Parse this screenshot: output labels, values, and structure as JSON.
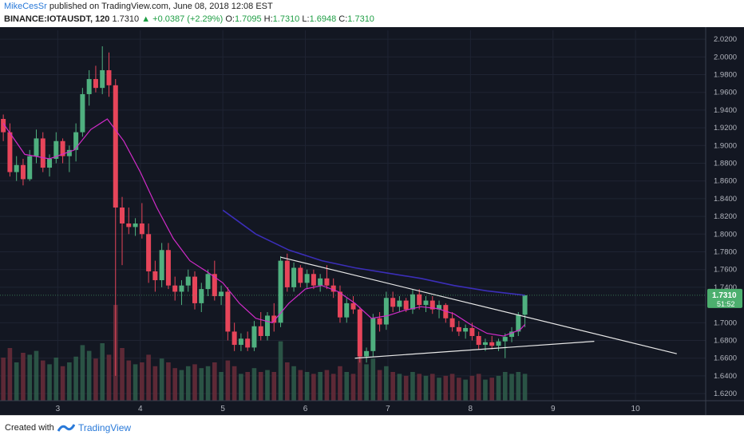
{
  "header": {
    "author": "MikeCesSr",
    "published_text": "published on TradingView.com, June 08, 2018 12:08 EST",
    "symbol": "BINANCE:IOTAUSDT, 120",
    "last": "1.7310",
    "change": "+0.0387 (+2.29%)",
    "o_label": "O:",
    "o_value": "1.7095",
    "h_label": "H:",
    "h_value": "1.7310",
    "l_label": "L:",
    "l_value": "1.6948",
    "c_label": "C:",
    "c_value": "1.7310"
  },
  "footer": {
    "created_with": "Created with",
    "brand": "TradingView"
  },
  "colors": {
    "background": "#131722",
    "up": "#4fb07f",
    "down": "#e7455a",
    "ema_short": "#d12bc9",
    "ema_long": "#3b2eb8",
    "trendline": "#e8e8e8",
    "price_tag": "#4caf6e"
  },
  "chart_data": {
    "type": "candlestick",
    "ylim": [
      1.612,
      2.03
    ],
    "xlim": [
      2.3,
      10.85
    ],
    "y_ticks": [
      "2.0200",
      "2.0000",
      "1.9800",
      "1.9600",
      "1.9400",
      "1.9200",
      "1.9000",
      "1.8800",
      "1.8600",
      "1.8400",
      "1.8200",
      "1.8000",
      "1.7800",
      "1.7600",
      "1.7400",
      "1.7200",
      "1.7000",
      "1.6800",
      "1.6600",
      "1.6400",
      "1.6200"
    ],
    "x_ticks": [
      "3",
      "4",
      "5",
      "6",
      "7",
      "8",
      "9",
      "10"
    ],
    "last_price_label": "1.7310",
    "countdown_label": "51:52",
    "price_line": 1.731,
    "candles": [
      {
        "t": 2.34,
        "o": 1.93,
        "h": 1.935,
        "l": 1.905,
        "c": 1.915
      },
      {
        "t": 2.42,
        "o": 1.915,
        "h": 1.925,
        "l": 1.865,
        "c": 1.87
      },
      {
        "t": 2.5,
        "o": 1.87,
        "h": 1.888,
        "l": 1.86,
        "c": 1.878
      },
      {
        "t": 2.58,
        "o": 1.878,
        "h": 1.885,
        "l": 1.855,
        "c": 1.862
      },
      {
        "t": 2.66,
        "o": 1.862,
        "h": 1.895,
        "l": 1.86,
        "c": 1.888
      },
      {
        "t": 2.74,
        "o": 1.888,
        "h": 1.918,
        "l": 1.88,
        "c": 1.908
      },
      {
        "t": 2.82,
        "o": 1.908,
        "h": 1.915,
        "l": 1.87,
        "c": 1.875
      },
      {
        "t": 2.9,
        "o": 1.875,
        "h": 1.89,
        "l": 1.865,
        "c": 1.885
      },
      {
        "t": 2.98,
        "o": 1.885,
        "h": 1.915,
        "l": 1.88,
        "c": 1.905
      },
      {
        "t": 3.06,
        "o": 1.905,
        "h": 1.908,
        "l": 1.88,
        "c": 1.888
      },
      {
        "t": 3.14,
        "o": 1.888,
        "h": 1.9,
        "l": 1.87,
        "c": 1.895
      },
      {
        "t": 3.22,
        "o": 1.895,
        "h": 1.925,
        "l": 1.882,
        "c": 1.915
      },
      {
        "t": 3.3,
        "o": 1.915,
        "h": 1.965,
        "l": 1.91,
        "c": 1.958
      },
      {
        "t": 3.38,
        "o": 1.958,
        "h": 1.985,
        "l": 1.945,
        "c": 1.975
      },
      {
        "t": 3.46,
        "o": 1.975,
        "h": 1.99,
        "l": 1.96,
        "c": 1.965
      },
      {
        "t": 3.54,
        "o": 1.965,
        "h": 2.012,
        "l": 1.958,
        "c": 1.985
      },
      {
        "t": 3.62,
        "o": 1.985,
        "h": 2.005,
        "l": 1.955,
        "c": 1.968
      },
      {
        "t": 3.7,
        "o": 1.968,
        "h": 1.975,
        "l": 1.64,
        "c": 1.83
      },
      {
        "t": 3.78,
        "o": 1.83,
        "h": 1.842,
        "l": 1.765,
        "c": 1.812
      },
      {
        "t": 3.86,
        "o": 1.812,
        "h": 1.83,
        "l": 1.8,
        "c": 1.808
      },
      {
        "t": 3.94,
        "o": 1.808,
        "h": 1.818,
        "l": 1.798,
        "c": 1.812
      },
      {
        "t": 4.02,
        "o": 1.812,
        "h": 1.835,
        "l": 1.795,
        "c": 1.8
      },
      {
        "t": 4.1,
        "o": 1.8,
        "h": 1.812,
        "l": 1.745,
        "c": 1.758
      },
      {
        "t": 4.18,
        "o": 1.758,
        "h": 1.77,
        "l": 1.735,
        "c": 1.748
      },
      {
        "t": 4.26,
        "o": 1.748,
        "h": 1.79,
        "l": 1.74,
        "c": 1.782
      },
      {
        "t": 4.34,
        "o": 1.782,
        "h": 1.79,
        "l": 1.738,
        "c": 1.742
      },
      {
        "t": 4.42,
        "o": 1.742,
        "h": 1.752,
        "l": 1.725,
        "c": 1.735
      },
      {
        "t": 4.5,
        "o": 1.735,
        "h": 1.748,
        "l": 1.72,
        "c": 1.742
      },
      {
        "t": 4.58,
        "o": 1.742,
        "h": 1.76,
        "l": 1.735,
        "c": 1.752
      },
      {
        "t": 4.66,
        "o": 1.752,
        "h": 1.758,
        "l": 1.715,
        "c": 1.722
      },
      {
        "t": 4.74,
        "o": 1.722,
        "h": 1.745,
        "l": 1.712,
        "c": 1.738
      },
      {
        "t": 4.82,
        "o": 1.738,
        "h": 1.76,
        "l": 1.73,
        "c": 1.755
      },
      {
        "t": 4.9,
        "o": 1.755,
        "h": 1.77,
        "l": 1.725,
        "c": 1.73
      },
      {
        "t": 4.98,
        "o": 1.73,
        "h": 1.742,
        "l": 1.72,
        "c": 1.735
      },
      {
        "t": 5.06,
        "o": 1.735,
        "h": 1.74,
        "l": 1.68,
        "c": 1.69
      },
      {
        "t": 5.14,
        "o": 1.69,
        "h": 1.7,
        "l": 1.668,
        "c": 1.675
      },
      {
        "t": 5.22,
        "o": 1.675,
        "h": 1.688,
        "l": 1.668,
        "c": 1.682
      },
      {
        "t": 5.3,
        "o": 1.682,
        "h": 1.69,
        "l": 1.668,
        "c": 1.672
      },
      {
        "t": 5.38,
        "o": 1.672,
        "h": 1.702,
        "l": 1.668,
        "c": 1.696
      },
      {
        "t": 5.46,
        "o": 1.696,
        "h": 1.712,
        "l": 1.68,
        "c": 1.685
      },
      {
        "t": 5.54,
        "o": 1.685,
        "h": 1.712,
        "l": 1.68,
        "c": 1.708
      },
      {
        "t": 5.62,
        "o": 1.708,
        "h": 1.722,
        "l": 1.69,
        "c": 1.7
      },
      {
        "t": 5.7,
        "o": 1.7,
        "h": 1.775,
        "l": 1.695,
        "c": 1.77
      },
      {
        "t": 5.78,
        "o": 1.77,
        "h": 1.778,
        "l": 1.735,
        "c": 1.74
      },
      {
        "t": 5.86,
        "o": 1.74,
        "h": 1.768,
        "l": 1.735,
        "c": 1.762
      },
      {
        "t": 5.94,
        "o": 1.762,
        "h": 1.765,
        "l": 1.74,
        "c": 1.745
      },
      {
        "t": 6.02,
        "o": 1.745,
        "h": 1.76,
        "l": 1.738,
        "c": 1.755
      },
      {
        "t": 6.1,
        "o": 1.755,
        "h": 1.76,
        "l": 1.738,
        "c": 1.742
      },
      {
        "t": 6.18,
        "o": 1.742,
        "h": 1.755,
        "l": 1.735,
        "c": 1.75
      },
      {
        "t": 6.26,
        "o": 1.75,
        "h": 1.765,
        "l": 1.738,
        "c": 1.742
      },
      {
        "t": 6.34,
        "o": 1.742,
        "h": 1.75,
        "l": 1.728,
        "c": 1.735
      },
      {
        "t": 6.42,
        "o": 1.735,
        "h": 1.742,
        "l": 1.7,
        "c": 1.706
      },
      {
        "t": 6.5,
        "o": 1.706,
        "h": 1.728,
        "l": 1.7,
        "c": 1.722
      },
      {
        "t": 6.58,
        "o": 1.722,
        "h": 1.73,
        "l": 1.71,
        "c": 1.715
      },
      {
        "t": 6.66,
        "o": 1.715,
        "h": 1.718,
        "l": 1.655,
        "c": 1.662
      },
      {
        "t": 6.74,
        "o": 1.662,
        "h": 1.672,
        "l": 1.655,
        "c": 1.668
      },
      {
        "t": 6.82,
        "o": 1.668,
        "h": 1.71,
        "l": 1.662,
        "c": 1.705
      },
      {
        "t": 6.9,
        "o": 1.705,
        "h": 1.712,
        "l": 1.69,
        "c": 1.698
      },
      {
        "t": 6.98,
        "o": 1.698,
        "h": 1.735,
        "l": 1.692,
        "c": 1.728
      },
      {
        "t": 7.06,
        "o": 1.728,
        "h": 1.735,
        "l": 1.712,
        "c": 1.718
      },
      {
        "t": 7.14,
        "o": 1.718,
        "h": 1.73,
        "l": 1.712,
        "c": 1.725
      },
      {
        "t": 7.22,
        "o": 1.725,
        "h": 1.728,
        "l": 1.712,
        "c": 1.715
      },
      {
        "t": 7.3,
        "o": 1.715,
        "h": 1.738,
        "l": 1.71,
        "c": 1.732
      },
      {
        "t": 7.38,
        "o": 1.732,
        "h": 1.738,
        "l": 1.715,
        "c": 1.72
      },
      {
        "t": 7.46,
        "o": 1.72,
        "h": 1.73,
        "l": 1.712,
        "c": 1.725
      },
      {
        "t": 7.54,
        "o": 1.725,
        "h": 1.73,
        "l": 1.71,
        "c": 1.715
      },
      {
        "t": 7.62,
        "o": 1.715,
        "h": 1.725,
        "l": 1.705,
        "c": 1.72
      },
      {
        "t": 7.7,
        "o": 1.72,
        "h": 1.722,
        "l": 1.7,
        "c": 1.705
      },
      {
        "t": 7.78,
        "o": 1.705,
        "h": 1.712,
        "l": 1.69,
        "c": 1.695
      },
      {
        "t": 7.86,
        "o": 1.695,
        "h": 1.702,
        "l": 1.685,
        "c": 1.69
      },
      {
        "t": 7.94,
        "o": 1.69,
        "h": 1.698,
        "l": 1.682,
        "c": 1.694
      },
      {
        "t": 8.02,
        "o": 1.694,
        "h": 1.7,
        "l": 1.68,
        "c": 1.685
      },
      {
        "t": 8.1,
        "o": 1.685,
        "h": 1.69,
        "l": 1.67,
        "c": 1.675
      },
      {
        "t": 8.18,
        "o": 1.675,
        "h": 1.682,
        "l": 1.668,
        "c": 1.678
      },
      {
        "t": 8.26,
        "o": 1.678,
        "h": 1.685,
        "l": 1.67,
        "c": 1.674
      },
      {
        "t": 8.34,
        "o": 1.674,
        "h": 1.682,
        "l": 1.668,
        "c": 1.679
      },
      {
        "t": 8.42,
        "o": 1.679,
        "h": 1.688,
        "l": 1.66,
        "c": 1.684
      },
      {
        "t": 8.5,
        "o": 1.684,
        "h": 1.695,
        "l": 1.678,
        "c": 1.69
      },
      {
        "t": 8.58,
        "o": 1.69,
        "h": 1.712,
        "l": 1.685,
        "c": 1.709
      },
      {
        "t": 8.66,
        "o": 1.709,
        "h": 1.731,
        "l": 1.695,
        "c": 1.731
      }
    ],
    "ema_short": [
      [
        2.34,
        1.925
      ],
      [
        2.6,
        1.89
      ],
      [
        2.9,
        1.885
      ],
      [
        3.2,
        1.895
      ],
      [
        3.4,
        1.918
      ],
      [
        3.6,
        1.93
      ],
      [
        3.8,
        1.905
      ],
      [
        4.0,
        1.87
      ],
      [
        4.2,
        1.83
      ],
      [
        4.4,
        1.795
      ],
      [
        4.6,
        1.77
      ],
      [
        4.8,
        1.758
      ],
      [
        5.0,
        1.745
      ],
      [
        5.2,
        1.722
      ],
      [
        5.4,
        1.705
      ],
      [
        5.6,
        1.7
      ],
      [
        5.8,
        1.722
      ],
      [
        6.0,
        1.738
      ],
      [
        6.2,
        1.742
      ],
      [
        6.4,
        1.735
      ],
      [
        6.6,
        1.722
      ],
      [
        6.8,
        1.705
      ],
      [
        7.0,
        1.708
      ],
      [
        7.2,
        1.714
      ],
      [
        7.4,
        1.718
      ],
      [
        7.6,
        1.716
      ],
      [
        7.8,
        1.71
      ],
      [
        8.0,
        1.698
      ],
      [
        8.2,
        1.688
      ],
      [
        8.4,
        1.685
      ],
      [
        8.6,
        1.692
      ],
      [
        8.66,
        1.698
      ]
    ],
    "ema_long": [
      [
        5.0,
        1.827
      ],
      [
        5.4,
        1.8
      ],
      [
        5.8,
        1.782
      ],
      [
        6.2,
        1.77
      ],
      [
        6.6,
        1.762
      ],
      [
        7.0,
        1.756
      ],
      [
        7.4,
        1.75
      ],
      [
        7.8,
        1.742
      ],
      [
        8.2,
        1.736
      ],
      [
        8.66,
        1.731
      ]
    ],
    "trendline_upper": [
      [
        5.7,
        1.774
      ],
      [
        10.5,
        1.665
      ]
    ],
    "trendline_lower": [
      [
        6.6,
        1.66
      ],
      [
        9.5,
        1.679
      ]
    ],
    "volume": [
      {
        "t": 2.34,
        "v": 0.45,
        "up": false
      },
      {
        "t": 2.42,
        "v": 0.55,
        "up": false
      },
      {
        "t": 2.5,
        "v": 0.4,
        "up": true
      },
      {
        "t": 2.58,
        "v": 0.5,
        "up": false
      },
      {
        "t": 2.66,
        "v": 0.48,
        "up": true
      },
      {
        "t": 2.74,
        "v": 0.52,
        "up": true
      },
      {
        "t": 2.82,
        "v": 0.42,
        "up": false
      },
      {
        "t": 2.9,
        "v": 0.38,
        "up": true
      },
      {
        "t": 2.98,
        "v": 0.45,
        "up": true
      },
      {
        "t": 3.06,
        "v": 0.36,
        "up": false
      },
      {
        "t": 3.14,
        "v": 0.4,
        "up": true
      },
      {
        "t": 3.22,
        "v": 0.46,
        "up": true
      },
      {
        "t": 3.3,
        "v": 0.58,
        "up": true
      },
      {
        "t": 3.38,
        "v": 0.52,
        "up": true
      },
      {
        "t": 3.46,
        "v": 0.44,
        "up": false
      },
      {
        "t": 3.54,
        "v": 0.6,
        "up": true
      },
      {
        "t": 3.62,
        "v": 0.48,
        "up": false
      },
      {
        "t": 3.7,
        "v": 1.0,
        "up": false
      },
      {
        "t": 3.78,
        "v": 0.55,
        "up": false
      },
      {
        "t": 3.86,
        "v": 0.42,
        "up": false
      },
      {
        "t": 3.94,
        "v": 0.38,
        "up": true
      },
      {
        "t": 4.02,
        "v": 0.4,
        "up": false
      },
      {
        "t": 4.1,
        "v": 0.48,
        "up": false
      },
      {
        "t": 4.18,
        "v": 0.36,
        "up": false
      },
      {
        "t": 4.26,
        "v": 0.44,
        "up": true
      },
      {
        "t": 4.34,
        "v": 0.4,
        "up": false
      },
      {
        "t": 4.42,
        "v": 0.34,
        "up": false
      },
      {
        "t": 4.5,
        "v": 0.32,
        "up": true
      },
      {
        "t": 4.58,
        "v": 0.36,
        "up": true
      },
      {
        "t": 4.66,
        "v": 0.38,
        "up": false
      },
      {
        "t": 4.74,
        "v": 0.34,
        "up": true
      },
      {
        "t": 4.82,
        "v": 0.36,
        "up": true
      },
      {
        "t": 4.9,
        "v": 0.4,
        "up": false
      },
      {
        "t": 4.98,
        "v": 0.3,
        "up": true
      },
      {
        "t": 5.06,
        "v": 0.42,
        "up": false
      },
      {
        "t": 5.14,
        "v": 0.36,
        "up": false
      },
      {
        "t": 5.22,
        "v": 0.28,
        "up": true
      },
      {
        "t": 5.3,
        "v": 0.3,
        "up": false
      },
      {
        "t": 5.38,
        "v": 0.34,
        "up": true
      },
      {
        "t": 5.46,
        "v": 0.3,
        "up": false
      },
      {
        "t": 5.54,
        "v": 0.32,
        "up": true
      },
      {
        "t": 5.62,
        "v": 0.3,
        "up": false
      },
      {
        "t": 5.7,
        "v": 0.62,
        "up": true
      },
      {
        "t": 5.78,
        "v": 0.4,
        "up": false
      },
      {
        "t": 5.86,
        "v": 0.36,
        "up": true
      },
      {
        "t": 5.94,
        "v": 0.32,
        "up": false
      },
      {
        "t": 6.02,
        "v": 0.3,
        "up": true
      },
      {
        "t": 6.1,
        "v": 0.28,
        "up": false
      },
      {
        "t": 6.18,
        "v": 0.3,
        "up": true
      },
      {
        "t": 6.26,
        "v": 0.32,
        "up": false
      },
      {
        "t": 6.34,
        "v": 0.28,
        "up": false
      },
      {
        "t": 6.42,
        "v": 0.36,
        "up": false
      },
      {
        "t": 6.5,
        "v": 0.3,
        "up": true
      },
      {
        "t": 6.58,
        "v": 0.28,
        "up": false
      },
      {
        "t": 6.66,
        "v": 0.5,
        "up": false
      },
      {
        "t": 6.74,
        "v": 0.38,
        "up": true
      },
      {
        "t": 6.82,
        "v": 0.44,
        "up": true
      },
      {
        "t": 6.9,
        "v": 0.32,
        "up": false
      },
      {
        "t": 6.98,
        "v": 0.36,
        "up": true
      },
      {
        "t": 7.06,
        "v": 0.3,
        "up": false
      },
      {
        "t": 7.14,
        "v": 0.28,
        "up": true
      },
      {
        "t": 7.22,
        "v": 0.26,
        "up": false
      },
      {
        "t": 7.3,
        "v": 0.3,
        "up": true
      },
      {
        "t": 7.38,
        "v": 0.28,
        "up": false
      },
      {
        "t": 7.46,
        "v": 0.26,
        "up": true
      },
      {
        "t": 7.54,
        "v": 0.28,
        "up": false
      },
      {
        "t": 7.62,
        "v": 0.24,
        "up": true
      },
      {
        "t": 7.7,
        "v": 0.26,
        "up": false
      },
      {
        "t": 7.78,
        "v": 0.28,
        "up": false
      },
      {
        "t": 7.86,
        "v": 0.24,
        "up": false
      },
      {
        "t": 7.94,
        "v": 0.22,
        "up": true
      },
      {
        "t": 8.02,
        "v": 0.26,
        "up": false
      },
      {
        "t": 8.1,
        "v": 0.28,
        "up": false
      },
      {
        "t": 8.18,
        "v": 0.22,
        "up": true
      },
      {
        "t": 8.26,
        "v": 0.24,
        "up": false
      },
      {
        "t": 8.34,
        "v": 0.26,
        "up": true
      },
      {
        "t": 8.42,
        "v": 0.3,
        "up": true
      },
      {
        "t": 8.5,
        "v": 0.28,
        "up": true
      },
      {
        "t": 8.58,
        "v": 0.3,
        "up": true
      },
      {
        "t": 8.66,
        "v": 0.28,
        "up": true
      }
    ]
  }
}
